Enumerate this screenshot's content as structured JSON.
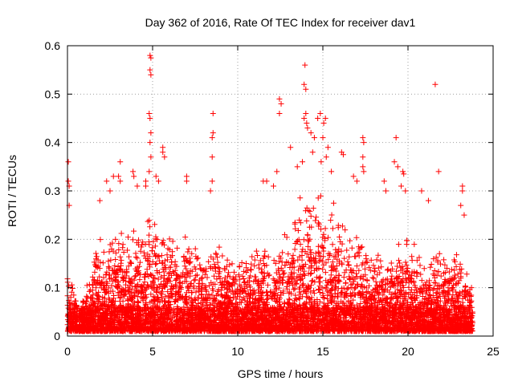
{
  "chart_data": {
    "type": "scatter",
    "title": "Day 362 of 2016, Rate Of TEC Index for receiver dav1",
    "xlabel": "GPS time / hours",
    "ylabel": "ROTI / TECUs",
    "xlim": [
      0,
      25
    ],
    "ylim": [
      0,
      0.6
    ],
    "x_ticks": [
      0,
      5,
      10,
      15,
      20,
      25
    ],
    "y_ticks": [
      0,
      0.1,
      0.2,
      0.3,
      0.4,
      0.5,
      0.6
    ],
    "x_tick_labels": [
      "0",
      "5",
      "10",
      "15",
      "20",
      "25"
    ],
    "y_tick_labels": [
      "0",
      "0.1",
      "0.2",
      "0.3",
      "0.4",
      "0.5",
      "0.6"
    ],
    "grid": true,
    "marker": "plus",
    "marker_color": "#ff0000",
    "envelope": {
      "x_hours": [
        0,
        0.2,
        0.5,
        1,
        1.5,
        2,
        2.5,
        3,
        3.5,
        4,
        4.5,
        4.8,
        5,
        5.5,
        6,
        6.5,
        7,
        7.5,
        8,
        8.5,
        9,
        9.5,
        10,
        10.5,
        11,
        11.5,
        12,
        12.5,
        13,
        13.5,
        14,
        14.5,
        15,
        15.5,
        16,
        16.5,
        17,
        17.5,
        18,
        18.5,
        19,
        19.5,
        20,
        20.5,
        21,
        21.5,
        22,
        22.5,
        23,
        23.5,
        23.8
      ],
      "upper_roti": [
        0.14,
        0.11,
        0.07,
        0.08,
        0.15,
        0.2,
        0.21,
        0.2,
        0.19,
        0.2,
        0.22,
        0.24,
        0.23,
        0.21,
        0.2,
        0.18,
        0.2,
        0.17,
        0.16,
        0.18,
        0.17,
        0.16,
        0.15,
        0.15,
        0.17,
        0.16,
        0.16,
        0.18,
        0.22,
        0.26,
        0.27,
        0.27,
        0.28,
        0.25,
        0.22,
        0.2,
        0.2,
        0.17,
        0.16,
        0.15,
        0.14,
        0.18,
        0.21,
        0.17,
        0.14,
        0.15,
        0.17,
        0.15,
        0.17,
        0.12,
        0.09
      ],
      "floor_roti": 0.01
    },
    "notable_points": [
      {
        "x": 0.05,
        "y": 0.36
      },
      {
        "x": 0.05,
        "y": 0.32
      },
      {
        "x": 0.1,
        "y": 0.31
      },
      {
        "x": 0.1,
        "y": 0.27
      },
      {
        "x": 4.85,
        "y": 0.58
      },
      {
        "x": 4.9,
        "y": 0.575
      },
      {
        "x": 4.85,
        "y": 0.55
      },
      {
        "x": 4.9,
        "y": 0.54
      },
      {
        "x": 4.8,
        "y": 0.46
      },
      {
        "x": 4.85,
        "y": 0.45
      },
      {
        "x": 4.9,
        "y": 0.42
      },
      {
        "x": 4.85,
        "y": 0.4
      },
      {
        "x": 4.9,
        "y": 0.37
      },
      {
        "x": 4.8,
        "y": 0.34
      },
      {
        "x": 5.6,
        "y": 0.39
      },
      {
        "x": 5.6,
        "y": 0.38
      },
      {
        "x": 5.7,
        "y": 0.37
      },
      {
        "x": 5.2,
        "y": 0.33
      },
      {
        "x": 5.35,
        "y": 0.32
      },
      {
        "x": 3.1,
        "y": 0.36
      },
      {
        "x": 3.0,
        "y": 0.33
      },
      {
        "x": 3.1,
        "y": 0.32
      },
      {
        "x": 2.7,
        "y": 0.33
      },
      {
        "x": 3.85,
        "y": 0.34
      },
      {
        "x": 3.9,
        "y": 0.33
      },
      {
        "x": 4.1,
        "y": 0.31
      },
      {
        "x": 4.6,
        "y": 0.32
      },
      {
        "x": 4.6,
        "y": 0.31
      },
      {
        "x": 2.3,
        "y": 0.32
      },
      {
        "x": 2.5,
        "y": 0.3
      },
      {
        "x": 1.9,
        "y": 0.28
      },
      {
        "x": 7.0,
        "y": 0.33
      },
      {
        "x": 7.0,
        "y": 0.32
      },
      {
        "x": 8.55,
        "y": 0.46
      },
      {
        "x": 8.55,
        "y": 0.42
      },
      {
        "x": 8.5,
        "y": 0.41
      },
      {
        "x": 8.5,
        "y": 0.37
      },
      {
        "x": 8.5,
        "y": 0.32
      },
      {
        "x": 8.4,
        "y": 0.3
      },
      {
        "x": 12.45,
        "y": 0.49
      },
      {
        "x": 12.55,
        "y": 0.48
      },
      {
        "x": 12.45,
        "y": 0.46
      },
      {
        "x": 13.1,
        "y": 0.39
      },
      {
        "x": 12.3,
        "y": 0.34
      },
      {
        "x": 12.1,
        "y": 0.31
      },
      {
        "x": 11.5,
        "y": 0.32
      },
      {
        "x": 11.7,
        "y": 0.32
      },
      {
        "x": 13.95,
        "y": 0.56
      },
      {
        "x": 13.9,
        "y": 0.52
      },
      {
        "x": 14.0,
        "y": 0.51
      },
      {
        "x": 14.0,
        "y": 0.46
      },
      {
        "x": 13.9,
        "y": 0.45
      },
      {
        "x": 14.05,
        "y": 0.44
      },
      {
        "x": 14.1,
        "y": 0.43
      },
      {
        "x": 14.3,
        "y": 0.42
      },
      {
        "x": 14.7,
        "y": 0.45
      },
      {
        "x": 14.85,
        "y": 0.46
      },
      {
        "x": 15.05,
        "y": 0.44
      },
      {
        "x": 15.15,
        "y": 0.45
      },
      {
        "x": 14.5,
        "y": 0.41
      },
      {
        "x": 15.0,
        "y": 0.41
      },
      {
        "x": 15.3,
        "y": 0.39
      },
      {
        "x": 15.2,
        "y": 0.37
      },
      {
        "x": 14.4,
        "y": 0.38
      },
      {
        "x": 13.8,
        "y": 0.36
      },
      {
        "x": 13.5,
        "y": 0.35
      },
      {
        "x": 14.9,
        "y": 0.36
      },
      {
        "x": 15.5,
        "y": 0.34
      },
      {
        "x": 16.1,
        "y": 0.38
      },
      {
        "x": 16.2,
        "y": 0.375
      },
      {
        "x": 17.35,
        "y": 0.41
      },
      {
        "x": 17.4,
        "y": 0.4
      },
      {
        "x": 17.35,
        "y": 0.37
      },
      {
        "x": 17.35,
        "y": 0.35
      },
      {
        "x": 17.4,
        "y": 0.34
      },
      {
        "x": 16.8,
        "y": 0.33
      },
      {
        "x": 17.0,
        "y": 0.32
      },
      {
        "x": 18.6,
        "y": 0.32
      },
      {
        "x": 18.7,
        "y": 0.3
      },
      {
        "x": 19.3,
        "y": 0.41
      },
      {
        "x": 19.2,
        "y": 0.36
      },
      {
        "x": 19.4,
        "y": 0.35
      },
      {
        "x": 19.7,
        "y": 0.34
      },
      {
        "x": 19.75,
        "y": 0.335
      },
      {
        "x": 19.6,
        "y": 0.31
      },
      {
        "x": 19.85,
        "y": 0.3
      },
      {
        "x": 21.6,
        "y": 0.52
      },
      {
        "x": 21.8,
        "y": 0.34
      },
      {
        "x": 20.8,
        "y": 0.3
      },
      {
        "x": 21.2,
        "y": 0.28
      },
      {
        "x": 23.2,
        "y": 0.31
      },
      {
        "x": 23.2,
        "y": 0.3
      },
      {
        "x": 23.3,
        "y": 0.25
      },
      {
        "x": 23.1,
        "y": 0.27
      }
    ]
  }
}
